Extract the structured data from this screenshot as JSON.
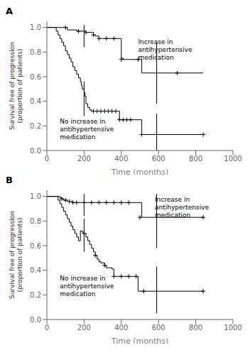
{
  "chart_data": [
    {
      "type": "line",
      "title": "A",
      "xlabel": "Time (months)",
      "ylabel": "Survival free of progression\n(proportion of patients)",
      "xlim": [
        0,
        1000
      ],
      "ylim": [
        0,
        1.05
      ],
      "xticks": [
        0,
        200,
        400,
        600,
        800,
        1000
      ],
      "yticks": [
        {
          "value": 0,
          "label": "0.0"
        },
        0.2,
        0.4,
        0.6,
        0.8,
        {
          "value": 1.0,
          "label": "1.0"
        }
      ],
      "grid": false,
      "series": [
        {
          "x": [
            0,
            100,
            110,
            150,
            160,
            200,
            210,
            240,
            250,
            260,
            270,
            280,
            290,
            300,
            310,
            320,
            330,
            340,
            350,
            360,
            370,
            380,
            390,
            400,
            410,
            420,
            500,
            510,
            600,
            840
          ],
          "values": [
            1.0,
            1.0,
            0.98,
            0.98,
            0.97,
            0.97,
            0.96,
            0.96,
            0.94,
            0.93,
            0.93,
            0.91,
            0.91,
            0.91,
            0.91,
            0.91,
            0.91,
            0.91,
            0.91,
            0.91,
            0.91,
            0.91,
            0.91,
            0.75,
            0.74,
            0.74,
            0.74,
            0.63,
            0.63,
            0.63
          ],
          "color": "#000000",
          "line_style": "step",
          "marker": "+",
          "censor_x": [
            100,
            170,
            210,
            250,
            280,
            320,
            360,
            400,
            490,
            700
          ],
          "censor_values": [
            1.0,
            0.97,
            0.96,
            0.94,
            0.91,
            0.91,
            0.91,
            0.74,
            0.74,
            0.63
          ],
          "conf_x": [
            200,
            590
          ],
          "conf_low": [
            0.84,
            0.38
          ],
          "conf_high": [
            1.02,
            0.88
          ]
        },
        {
          "x": [
            0,
            40,
            50,
            60,
            70,
            80,
            90,
            100,
            110,
            120,
            130,
            140,
            150,
            160,
            170,
            180,
            185,
            190,
            200,
            205,
            210,
            220,
            230,
            240,
            250,
            260,
            270,
            280,
            290,
            300,
            310,
            320,
            330,
            340,
            350,
            360,
            370,
            380,
            385,
            390,
            400,
            410,
            420,
            430,
            440,
            450,
            500,
            510,
            600,
            840
          ],
          "values": [
            1.0,
            1.0,
            0.97,
            0.94,
            0.91,
            0.88,
            0.85,
            0.81,
            0.78,
            0.75,
            0.72,
            0.68,
            0.65,
            0.62,
            0.59,
            0.56,
            0.53,
            0.5,
            0.47,
            0.44,
            0.38,
            0.35,
            0.33,
            0.32,
            0.32,
            0.32,
            0.32,
            0.32,
            0.32,
            0.32,
            0.32,
            0.32,
            0.32,
            0.32,
            0.32,
            0.32,
            0.32,
            0.32,
            0.32,
            0.25,
            0.25,
            0.25,
            0.25,
            0.25,
            0.25,
            0.25,
            0.25,
            0.13,
            0.13,
            0.13
          ],
          "color": "#000000",
          "line_style": "step",
          "marker": "+",
          "censor_x": [
            250,
            270,
            290,
            310,
            330,
            350,
            370,
            390,
            410,
            430,
            450,
            510,
            840
          ],
          "censor_values": [
            0.32,
            0.32,
            0.32,
            0.32,
            0.32,
            0.32,
            0.32,
            0.25,
            0.25,
            0.25,
            0.25,
            0.13,
            0.13
          ],
          "conf_x": [
            200,
            590
          ],
          "conf_low": [
            0.28,
            0.0
          ],
          "conf_high": [
            0.56,
            0.3
          ]
        }
      ],
      "annotations": [
        {
          "text": "Increase in\nantihypertensive\nmedication",
          "x": 490,
          "y": 0.82
        },
        {
          "text": "No increase in\nantihypertensive\nmedication",
          "x": 70,
          "y": 0.175
        }
      ]
    },
    {
      "type": "line",
      "title": "B",
      "xlabel": "Time (months)",
      "ylabel": "Survival free of progression\n(proportion of patients)",
      "xlim": [
        0,
        1000
      ],
      "ylim": [
        0,
        1.05
      ],
      "xticks": [
        0,
        200,
        400,
        600,
        800,
        1000
      ],
      "yticks": [
        {
          "value": 0,
          "label": "0.0"
        },
        0.2,
        0.4,
        0.6,
        0.8,
        {
          "value": 1.0,
          "label": "1.0"
        }
      ],
      "grid": false,
      "series": [
        {
          "x": [
            0,
            60,
            70,
            80,
            90,
            100,
            110,
            120,
            130,
            140,
            150,
            160,
            170,
            180,
            190,
            200,
            220,
            240,
            260,
            280,
            300,
            320,
            340,
            360,
            380,
            400,
            420,
            440,
            460,
            500,
            510,
            600,
            840
          ],
          "values": [
            1.0,
            1.0,
            0.99,
            0.98,
            0.97,
            0.97,
            0.96,
            0.96,
            0.96,
            0.95,
            0.95,
            0.95,
            0.95,
            0.95,
            0.95,
            0.95,
            0.95,
            0.95,
            0.95,
            0.95,
            0.95,
            0.95,
            0.95,
            0.95,
            0.95,
            0.95,
            0.95,
            0.95,
            0.95,
            0.95,
            0.83,
            0.83,
            0.83
          ],
          "color": "#000000",
          "line_style": "step",
          "marker": "+",
          "censor_x": [
            80,
            100,
            120,
            140,
            160,
            200,
            240,
            280,
            320,
            360,
            400,
            440,
            500,
            840
          ],
          "censor_values": [
            0.98,
            0.97,
            0.96,
            0.95,
            0.95,
            0.95,
            0.95,
            0.95,
            0.95,
            0.95,
            0.95,
            0.95,
            0.83,
            0.83
          ],
          "conf_x": [
            200,
            590
          ],
          "conf_low": [
            0.84,
            0.58
          ],
          "conf_high": [
            1.02,
            1.02
          ]
        },
        {
          "x": [
            0,
            50,
            60,
            70,
            80,
            90,
            100,
            110,
            120,
            130,
            140,
            150,
            160,
            170,
            180,
            190,
            200,
            210,
            220,
            230,
            240,
            250,
            260,
            270,
            280,
            290,
            300,
            310,
            320,
            330,
            340,
            350,
            360,
            370,
            380,
            390,
            400,
            410,
            420,
            430,
            440,
            450,
            460,
            470,
            480,
            490,
            500,
            510,
            520,
            600,
            840
          ],
          "values": [
            1.0,
            1.0,
            0.97,
            0.94,
            0.91,
            0.88,
            0.85,
            0.82,
            0.79,
            0.76,
            0.73,
            0.7,
            0.67,
            0.64,
            0.72,
            0.71,
            0.7,
            0.67,
            0.64,
            0.61,
            0.58,
            0.55,
            0.52,
            0.49,
            0.47,
            0.46,
            0.46,
            0.44,
            0.42,
            0.42,
            0.42,
            0.41,
            0.35,
            0.35,
            0.35,
            0.35,
            0.35,
            0.35,
            0.35,
            0.35,
            0.35,
            0.35,
            0.35,
            0.35,
            0.35,
            0.23,
            0.23,
            0.23,
            0.23,
            0.23,
            0.23
          ],
          "color": "#000000",
          "line_style": "step",
          "marker": "+",
          "censor_x": [
            200,
            260,
            310,
            360,
            400,
            440,
            480,
            520,
            840
          ],
          "censor_values": [
            0.7,
            0.52,
            0.44,
            0.35,
            0.35,
            0.35,
            0.35,
            0.23,
            0.23
          ],
          "conf_x": [
            200,
            590
          ],
          "conf_low": [
            0.55,
            0.05
          ],
          "conf_high": [
            0.82,
            0.43
          ]
        }
      ],
      "annotations": [
        {
          "text": "Increase in\nantihypertensive\nmedication",
          "x": 580,
          "y": 0.91
        },
        {
          "text": "No increase in\nantihypertensive\nmedication",
          "x": 70,
          "y": 0.27
        }
      ]
    }
  ]
}
